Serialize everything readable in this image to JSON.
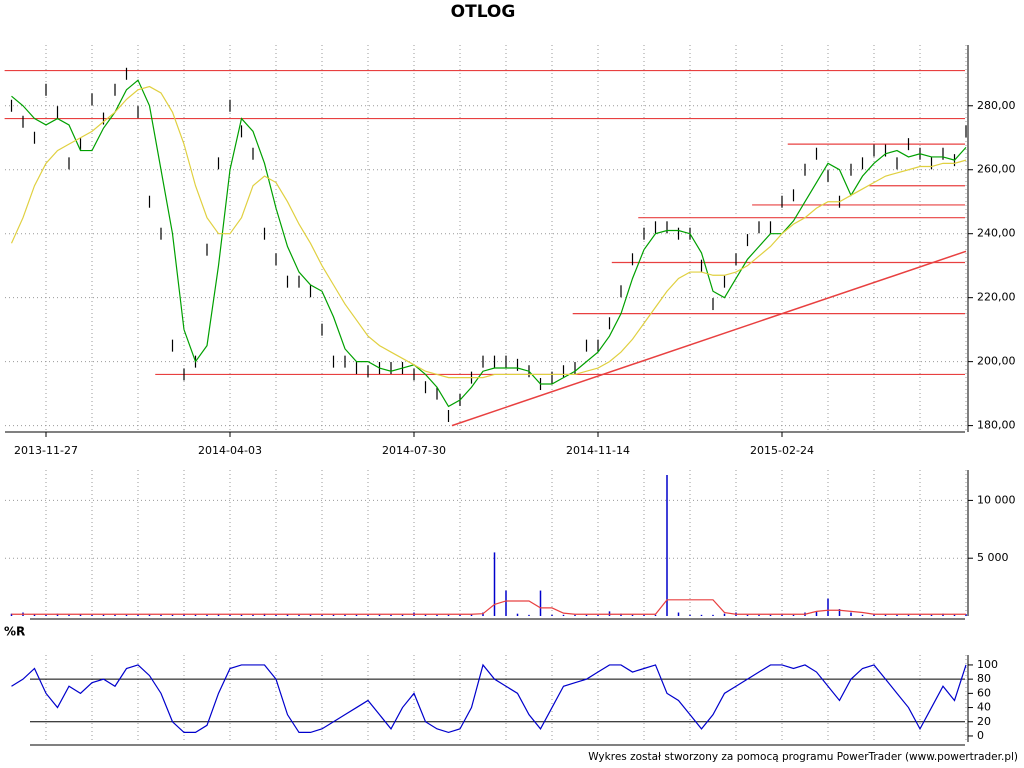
{
  "chart_data": [
    {
      "type": "line",
      "title": "OTLOG",
      "categories": [
        null,
        null,
        null,
        "2013-11-27",
        null,
        null,
        null,
        null,
        null,
        null,
        null,
        null,
        null,
        null,
        null,
        null,
        null,
        null,
        null,
        "2014-04-03",
        null,
        null,
        null,
        null,
        null,
        null,
        null,
        null,
        null,
        null,
        null,
        null,
        null,
        null,
        null,
        "2014-07-30",
        null,
        null,
        null,
        null,
        null,
        null,
        null,
        null,
        null,
        null,
        null,
        null,
        null,
        null,
        null,
        "2014-11-14",
        null,
        null,
        null,
        null,
        null,
        null,
        null,
        null,
        null,
        null,
        null,
        null,
        null,
        null,
        null,
        "2015-02-24",
        null,
        null,
        null,
        null,
        null,
        null,
        null,
        null,
        null,
        null,
        null,
        null,
        null,
        null,
        null,
        null
      ],
      "series": [
        {
          "style": "tick",
          "color": "#000000",
          "values": [
            280,
            275,
            270,
            285,
            278,
            262,
            268,
            282,
            276,
            285,
            290,
            278,
            250,
            240,
            205,
            196,
            200,
            235,
            262,
            280,
            272,
            265,
            240,
            232,
            225,
            225,
            222,
            210,
            200,
            200,
            198,
            197,
            198,
            198,
            198,
            196,
            192,
            190,
            183,
            188,
            195,
            200,
            200,
            200,
            199,
            197,
            193,
            195,
            197,
            198,
            205,
            205,
            212,
            222,
            232,
            240,
            242,
            242,
            240,
            240,
            230,
            218,
            225,
            232,
            238,
            242,
            242,
            250,
            252,
            260,
            265,
            258,
            250,
            260,
            262,
            266,
            266,
            262,
            268,
            265,
            262,
            265,
            263,
            272
          ]
        },
        {
          "style": "line",
          "color": "#00a000",
          "values": [
            283,
            280,
            276,
            274,
            276,
            274,
            266,
            266,
            273,
            278,
            285,
            288,
            280,
            260,
            240,
            210,
            200,
            205,
            230,
            260,
            276,
            272,
            262,
            248,
            236,
            228,
            224,
            222,
            214,
            204,
            200,
            200,
            198,
            197,
            198,
            199,
            196,
            192,
            186,
            188,
            192,
            197,
            198,
            198,
            198,
            197,
            193,
            193,
            195,
            197,
            200,
            203,
            208,
            215,
            226,
            235,
            240,
            241,
            241,
            240,
            234,
            222,
            220,
            226,
            232,
            236,
            240,
            240,
            244,
            250,
            256,
            262,
            260,
            252,
            258,
            262,
            265,
            266,
            264,
            265,
            264,
            264,
            263,
            267
          ]
        },
        {
          "style": "line",
          "color": "#e0d040",
          "values": [
            237,
            245,
            255,
            262,
            266,
            268,
            270,
            272,
            275,
            278,
            282,
            285,
            286,
            284,
            278,
            268,
            255,
            245,
            240,
            240,
            245,
            255,
            258,
            256,
            250,
            243,
            237,
            230,
            224,
            218,
            213,
            208,
            205,
            203,
            201,
            199,
            197,
            196,
            195,
            195,
            195,
            195,
            196,
            196,
            196,
            196,
            196,
            196,
            196,
            196,
            197,
            198,
            200,
            203,
            207,
            212,
            217,
            222,
            226,
            228,
            228,
            227,
            227,
            228,
            230,
            233,
            236,
            240,
            243,
            245,
            248,
            250,
            250,
            252,
            254,
            256,
            258,
            259,
            260,
            261,
            261,
            262,
            262,
            263
          ]
        }
      ],
      "levels": [
        {
          "value": 291,
          "start": -0.6
        },
        {
          "value": 276,
          "start": -0.6
        },
        {
          "value": 196,
          "start": 12.5
        },
        {
          "value": 215,
          "start": 48.8
        },
        {
          "value": 231,
          "start": 52.2
        },
        {
          "value": 245,
          "start": 54.5
        },
        {
          "value": 249,
          "start": 64.4
        },
        {
          "value": 255,
          "start": 74.6
        },
        {
          "value": 268,
          "start": 67.5
        }
      ],
      "trendline": {
        "x": [
          38.3,
          83
        ],
        "y": [
          180,
          234.5
        ]
      },
      "level_color": "#e84040",
      "ylim": [
        178,
        299
      ],
      "yticks": [
        {
          "value": 180,
          "label": "180,00"
        },
        {
          "value": 200,
          "label": "200,00"
        },
        {
          "value": 220,
          "label": "220,00"
        },
        {
          "value": 240,
          "label": "240,00"
        },
        {
          "value": 260,
          "label": "260,00"
        },
        {
          "value": 280,
          "label": "280,00"
        }
      ],
      "grid": true
    },
    {
      "type": "line",
      "series": [
        {
          "style": "bar",
          "color": "#0000cc",
          "values": [
            200,
            300,
            150,
            100,
            200,
            100,
            150,
            100,
            100,
            100,
            100,
            150,
            100,
            100,
            100,
            200,
            100,
            100,
            150,
            100,
            100,
            100,
            200,
            100,
            150,
            100,
            100,
            100,
            100,
            100,
            100,
            100,
            100,
            100,
            100,
            300,
            100,
            100,
            100,
            100,
            150,
            300,
            5500,
            2200,
            200,
            100,
            2200,
            100,
            100,
            100,
            100,
            100,
            400,
            200,
            100,
            100,
            100,
            12200,
            300,
            100,
            100,
            100,
            200,
            300,
            100,
            100,
            100,
            200,
            100,
            300,
            400,
            1500,
            600,
            300,
            100,
            200,
            100,
            100,
            100,
            100,
            100,
            200,
            100,
            150
          ]
        },
        {
          "style": "line",
          "color": "#e84040",
          "values": [
            150,
            150,
            150,
            150,
            150,
            150,
            150,
            150,
            150,
            150,
            150,
            150,
            150,
            150,
            150,
            150,
            150,
            150,
            150,
            150,
            150,
            150,
            150,
            150,
            150,
            150,
            150,
            150,
            150,
            150,
            150,
            150,
            150,
            150,
            150,
            150,
            150,
            150,
            150,
            150,
            150,
            200,
            1000,
            1300,
            1300,
            1300,
            700,
            700,
            250,
            150,
            150,
            150,
            150,
            150,
            150,
            150,
            150,
            1400,
            1400,
            1400,
            1400,
            1400,
            300,
            150,
            150,
            150,
            150,
            150,
            150,
            150,
            400,
            500,
            500,
            400,
            300,
            150,
            150,
            150,
            150,
            150,
            150,
            150,
            150,
            150
          ]
        }
      ],
      "ylim": [
        0,
        12630
      ],
      "yticks": [
        {
          "value": 5000,
          "label": "5 000"
        },
        {
          "value": 10000,
          "label": "10 000"
        }
      ],
      "grid": true
    },
    {
      "type": "line",
      "title": "%R",
      "series": [
        {
          "style": "line",
          "color": "#0000cc",
          "values": [
            70,
            80,
            95,
            60,
            40,
            70,
            60,
            75,
            80,
            70,
            95,
            100,
            85,
            60,
            20,
            5,
            5,
            15,
            60,
            95,
            100,
            100,
            100,
            80,
            30,
            5,
            5,
            10,
            20,
            30,
            40,
            50,
            30,
            10,
            40,
            60,
            20,
            10,
            5,
            10,
            40,
            100,
            80,
            70,
            60,
            30,
            10,
            40,
            70,
            75,
            80,
            90,
            100,
            100,
            90,
            95,
            100,
            60,
            50,
            30,
            10,
            30,
            60,
            70,
            80,
            90,
            100,
            100,
            95,
            100,
            90,
            70,
            50,
            80,
            95,
            100,
            80,
            60,
            40,
            10,
            40,
            70,
            50,
            100
          ]
        }
      ],
      "ref_lines": [
        20,
        80
      ],
      "ylim": [
        -8.5,
        114
      ],
      "yticks": [
        0,
        20,
        40,
        60,
        80,
        100
      ],
      "grid": false
    }
  ],
  "footer": "Wykres został stworzony za pomocą programu PowerTrader (www.powertrader.pl)"
}
